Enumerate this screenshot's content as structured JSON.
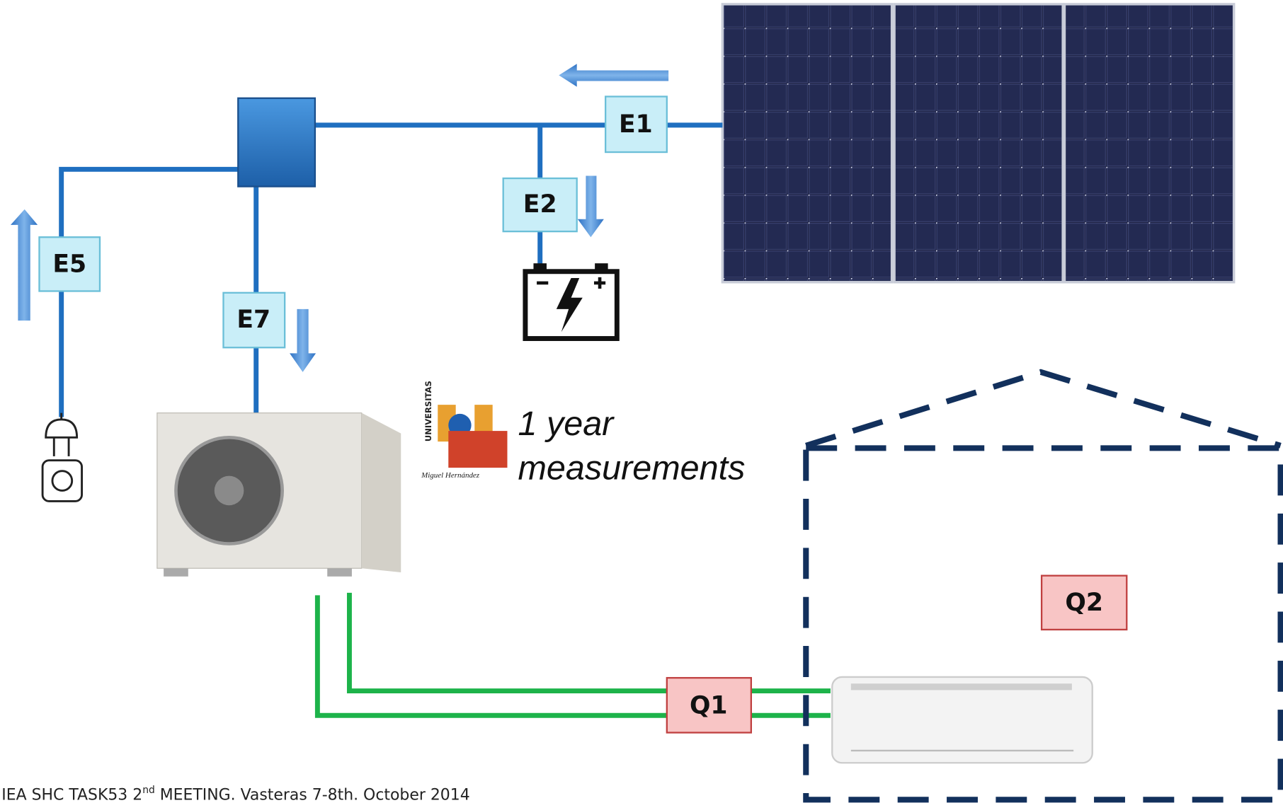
{
  "labels": {
    "e1": "E1",
    "e2": "E2",
    "e5": "E5",
    "e7": "E7",
    "q1": "Q1",
    "q2": "Q2"
  },
  "note": {
    "line1": "1 year",
    "line2": "measurements"
  },
  "logo": {
    "top": "UNIVERSITAS",
    "bottom": "Miguel Hernández"
  },
  "footer": {
    "part1": "IEA SHC TASK53 2",
    "sup": "nd",
    "part2": " MEETING. Vasteras 7-8th. October 2014"
  }
}
